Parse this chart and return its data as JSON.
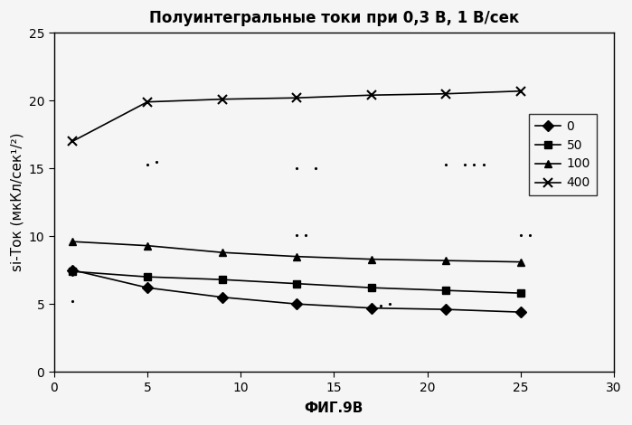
{
  "title": "Полуинтегральные токи при 0,3 В, 1 В/сек",
  "xlabel": "ФИГ.9В",
  "ylabel": "si-Ток (мкКл/сек¹/²)",
  "xlim": [
    0,
    30
  ],
  "ylim": [
    0,
    25
  ],
  "xticks": [
    0,
    5,
    10,
    15,
    20,
    25,
    30
  ],
  "yticks": [
    0,
    5,
    10,
    15,
    20,
    25
  ],
  "series": [
    {
      "label": "0",
      "x": [
        1,
        5,
        9,
        13,
        17,
        21,
        25
      ],
      "y": [
        7.5,
        6.2,
        5.5,
        5.0,
        4.7,
        4.6,
        4.4
      ],
      "marker": "D",
      "linestyle": "-"
    },
    {
      "label": "50",
      "x": [
        1,
        5,
        9,
        13,
        17,
        21,
        25
      ],
      "y": [
        7.4,
        7.0,
        6.8,
        6.5,
        6.2,
        6.0,
        5.8
      ],
      "marker": "s",
      "linestyle": "-"
    },
    {
      "label": "100",
      "x": [
        1,
        5,
        9,
        13,
        17,
        21,
        25
      ],
      "y": [
        9.6,
        9.3,
        8.8,
        8.5,
        8.3,
        8.2,
        8.1
      ],
      "marker": "^",
      "linestyle": "-"
    },
    {
      "label": "400",
      "x": [
        1,
        5,
        9,
        13,
        17,
        21,
        25
      ],
      "y": [
        17.0,
        19.9,
        20.1,
        20.2,
        20.4,
        20.5,
        20.7
      ],
      "marker": "x",
      "linestyle": "-"
    }
  ],
  "dot_positions": [
    [
      5.0,
      15.3
    ],
    [
      5.5,
      15.5
    ],
    [
      13.0,
      15.0
    ],
    [
      14.0,
      15.0
    ],
    [
      21.0,
      15.3
    ],
    [
      22.0,
      15.3
    ],
    [
      22.5,
      15.3
    ],
    [
      23.0,
      15.3
    ],
    [
      25.0,
      10.1
    ],
    [
      25.5,
      10.1
    ],
    [
      1.0,
      5.2
    ],
    [
      13.0,
      10.1
    ],
    [
      13.5,
      10.1
    ],
    [
      17.0,
      4.9
    ],
    [
      17.5,
      4.9
    ],
    [
      18.0,
      5.0
    ]
  ],
  "background_color": "#f0f0f0",
  "title_fontsize": 12,
  "label_fontsize": 11,
  "tick_fontsize": 10,
  "legend_fontsize": 10
}
